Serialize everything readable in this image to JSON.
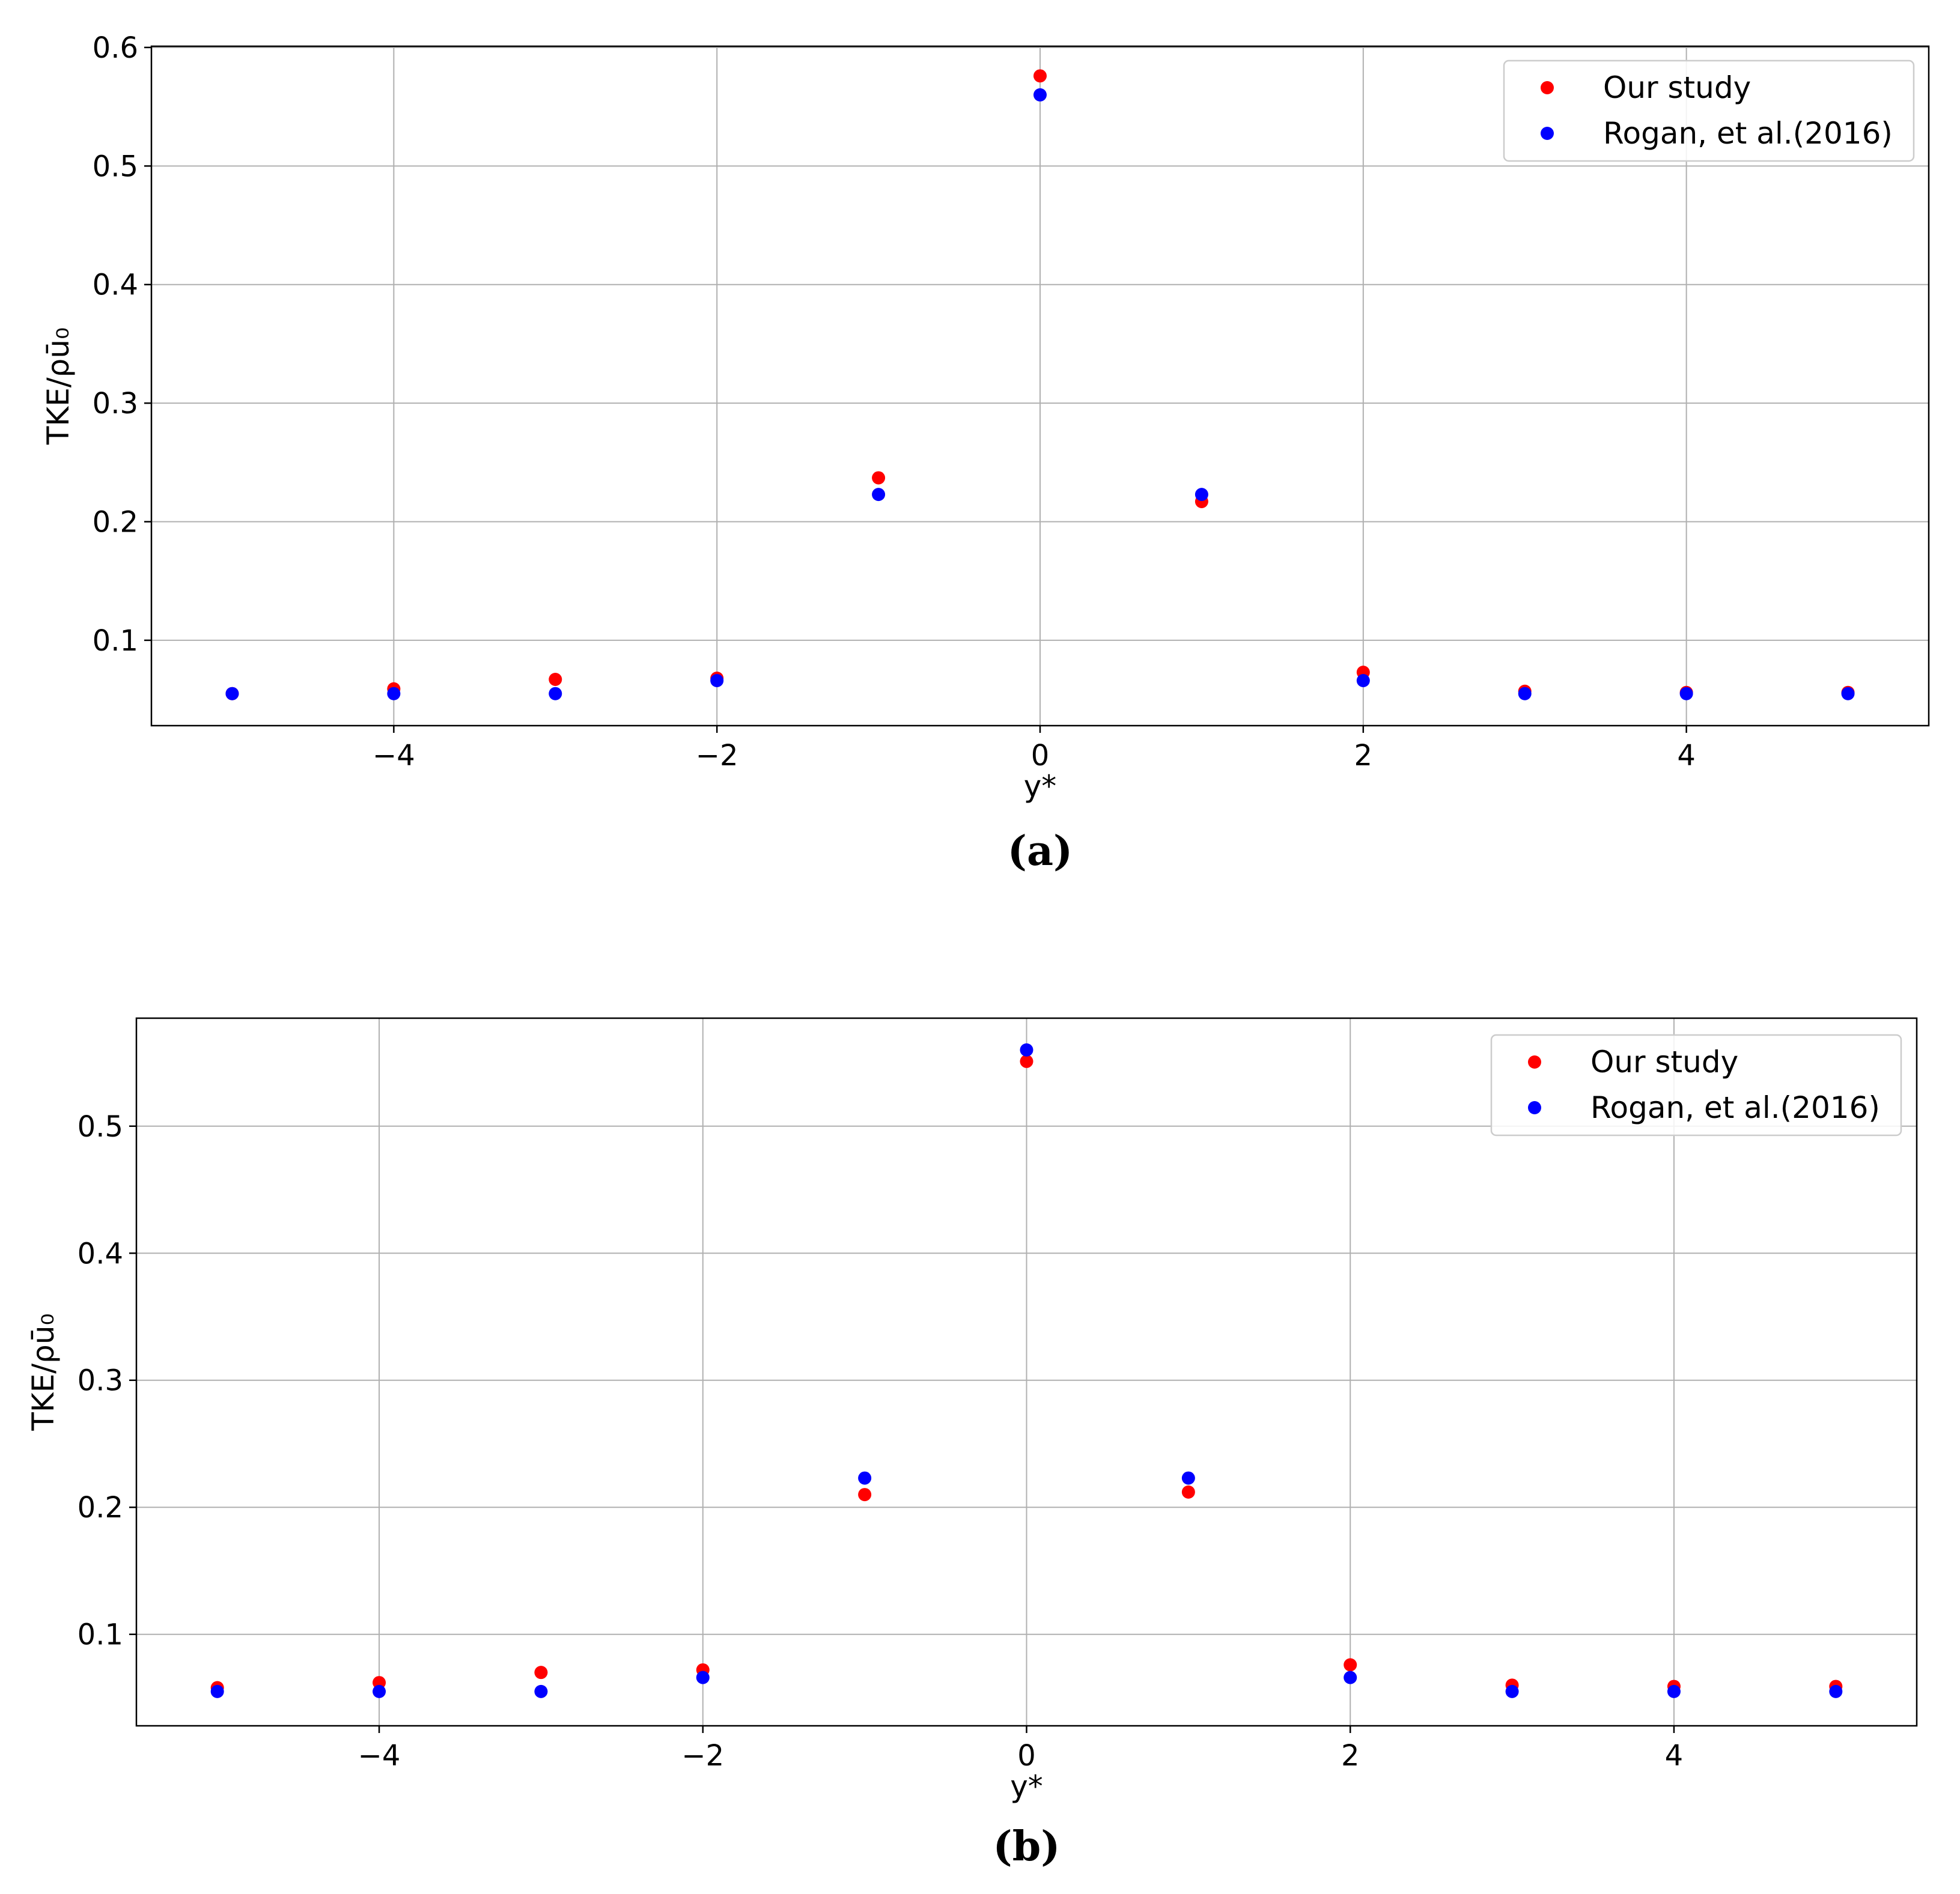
{
  "chart_data": [
    {
      "type": "scatter",
      "panel_label": "(a)",
      "xlabel": "y*",
      "ylabel": "TKE/ρū₀",
      "xlim": [
        -5.5,
        5.5
      ],
      "ylim": [
        0.028,
        0.601
      ],
      "xticks": [
        -4,
        -2,
        0,
        2,
        4
      ],
      "xtick_labels": [
        "−4",
        "−2",
        "0",
        "2",
        "4"
      ],
      "yticks": [
        0.1,
        0.2,
        0.3,
        0.4,
        0.5,
        0.6
      ],
      "ytick_labels": [
        "0.1",
        "0.2",
        "0.3",
        "0.4",
        "0.5",
        "0.6"
      ],
      "grid": true,
      "legend_position": "top-right",
      "x": [
        -5,
        -4,
        -3,
        -2,
        -1,
        0,
        1,
        2,
        3,
        4,
        5
      ],
      "series": [
        {
          "name": "Our study",
          "color": "#ff0000",
          "values": [
            0.055,
            0.059,
            0.067,
            0.068,
            0.237,
            0.576,
            0.217,
            0.073,
            0.057,
            0.056,
            0.056
          ]
        },
        {
          "name": "Rogan, et al.(2016)",
          "color": "#0000ff",
          "values": [
            0.055,
            0.055,
            0.055,
            0.066,
            0.223,
            0.56,
            0.223,
            0.066,
            0.055,
            0.055,
            0.055
          ]
        }
      ]
    },
    {
      "type": "scatter",
      "panel_label": "(b)",
      "xlabel": "y*",
      "ylabel": "TKE/ρū₀",
      "xlim": [
        -5.5,
        5.5
      ],
      "ylim": [
        0.028,
        0.585
      ],
      "xticks": [
        -4,
        -2,
        0,
        2,
        4
      ],
      "xtick_labels": [
        "−4",
        "−2",
        "0",
        "2",
        "4"
      ],
      "yticks": [
        0.1,
        0.2,
        0.3,
        0.4,
        0.5
      ],
      "ytick_labels": [
        "0.1",
        "0.2",
        "0.3",
        "0.4",
        "0.5"
      ],
      "grid": true,
      "legend_position": "top-right",
      "x": [
        -5,
        -4,
        -3,
        -2,
        -1,
        0,
        1,
        2,
        3,
        4,
        5
      ],
      "series": [
        {
          "name": "Our study",
          "color": "#ff0000",
          "values": [
            0.058,
            0.062,
            0.07,
            0.072,
            0.21,
            0.551,
            0.212,
            0.076,
            0.06,
            0.059,
            0.059
          ]
        },
        {
          "name": "Rogan, et al.(2016)",
          "color": "#0000ff",
          "values": [
            0.055,
            0.055,
            0.055,
            0.066,
            0.223,
            0.56,
            0.223,
            0.066,
            0.055,
            0.055,
            0.055
          ]
        }
      ]
    }
  ]
}
